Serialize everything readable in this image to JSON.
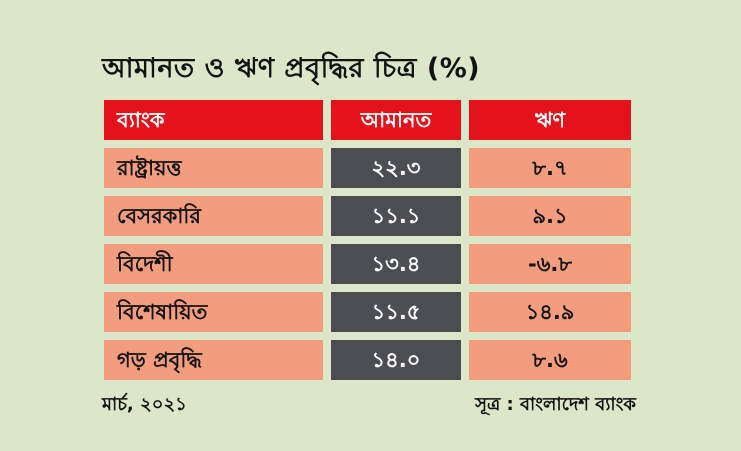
{
  "title": "আমানত ও ঋণ প্রবৃদ্ধির চিত্র (%)",
  "colors": {
    "bg": "#dce7c9",
    "red": "#e4121b",
    "salmon": "#f49d7e",
    "dark": "#4d4e54",
    "ink": "#131313",
    "white": "#ffffff"
  },
  "table": {
    "headers": {
      "bank": "ব্যাংক",
      "deposit": "আমানত",
      "loan": "ঋণ"
    },
    "rows": [
      {
        "bank": "রাষ্ট্রায়ত্ত",
        "deposit": "২২.৩",
        "loan": "৮.৭"
      },
      {
        "bank": "বেসরকারি",
        "deposit": "১১.১",
        "loan": "৯.১"
      },
      {
        "bank": "বিদেশী",
        "deposit": "১৩.৪",
        "loan": "-৬.৮"
      },
      {
        "bank": "বিশেষায়িত",
        "deposit": "১১.৫",
        "loan": "১৪.৯"
      },
      {
        "bank": "গড় প্রবৃদ্ধি",
        "deposit": "১৪.০",
        "loan": "৮.৬"
      }
    ]
  },
  "footer": {
    "date": "মার্চ, ২০২১",
    "source": "সূত্র : বাংলাদেশ ব্যাংক"
  },
  "chart_data": {
    "type": "table",
    "title": "আমানত ও ঋণ প্রবৃদ্ধির চিত্র (%)",
    "columns": [
      "ব্যাংক",
      "আমানত",
      "ঋণ"
    ],
    "categories": [
      "রাষ্ট্রায়ত্ত",
      "বেসরকারি",
      "বিদেশী",
      "বিশেষায়িত",
      "গড় প্রবৃদ্ধি"
    ],
    "series": [
      {
        "name": "আমানত",
        "values": [
          22.3,
          11.1,
          13.4,
          11.5,
          14.0
        ]
      },
      {
        "name": "ঋণ",
        "values": [
          8.7,
          9.1,
          -6.8,
          14.9,
          8.6
        ]
      }
    ],
    "unit": "%",
    "note_left": "মার্চ, ২০২১",
    "note_right": "সূত্র : বাংলাদেশ ব্যাংক",
    "legend_position": "none",
    "grid": false
  }
}
